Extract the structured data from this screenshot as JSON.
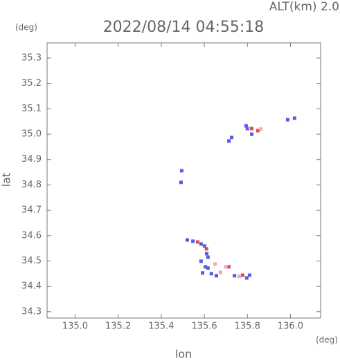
{
  "chart_data": {
    "type": "scatter",
    "top_label": "ALT(km) 2.0",
    "title": "2022/08/14 04:55:18",
    "y_unit": "(deg)",
    "x_unit": "(deg)",
    "xlabel": "lon",
    "ylabel": "lat",
    "xlim": [
      134.87,
      136.14
    ],
    "ylim": [
      34.275,
      35.36
    ],
    "xticks": [
      {
        "value": 135.0,
        "label": "135.0"
      },
      135.2,
      135.4,
      135.6,
      135.8,
      {
        "value": 136.0,
        "label": "136.0"
      }
    ],
    "yticks": [
      34.3,
      34.4,
      34.5,
      34.6,
      34.7,
      34.8,
      34.9,
      {
        "value": 35.0,
        "label": "35.0"
      },
      35.1,
      35.2,
      35.3
    ],
    "series": [
      {
        "color": "#5a5ae6",
        "x": [
          135.495,
          135.492,
          135.794,
          135.8,
          135.82,
          135.714,
          135.727,
          135.987,
          136.019,
          135.521,
          135.547,
          135.585,
          135.601,
          135.611,
          135.617,
          135.585,
          135.605,
          135.617,
          135.592,
          135.633,
          135.656,
          135.74,
          135.797,
          135.81
        ],
        "y": [
          34.856,
          34.81,
          35.033,
          35.022,
          35.0,
          34.973,
          34.987,
          35.057,
          35.063,
          34.583,
          34.578,
          34.567,
          34.559,
          34.529,
          34.515,
          34.499,
          34.477,
          34.472,
          34.453,
          34.45,
          34.442,
          34.442,
          34.433,
          34.444
        ]
      },
      {
        "color": "#e84848",
        "x": [
          135.82,
          135.849,
          135.569,
          135.714,
          135.778,
          135.61
        ],
        "y": [
          35.022,
          35.014,
          34.575,
          34.477,
          34.444,
          34.548
        ]
      },
      {
        "color": "#f2a6c4",
        "x": [
          135.65,
          135.675,
          135.7,
          135.762,
          135.862
        ],
        "y": [
          34.488,
          34.455,
          34.477,
          34.439,
          35.02
        ]
      }
    ]
  }
}
